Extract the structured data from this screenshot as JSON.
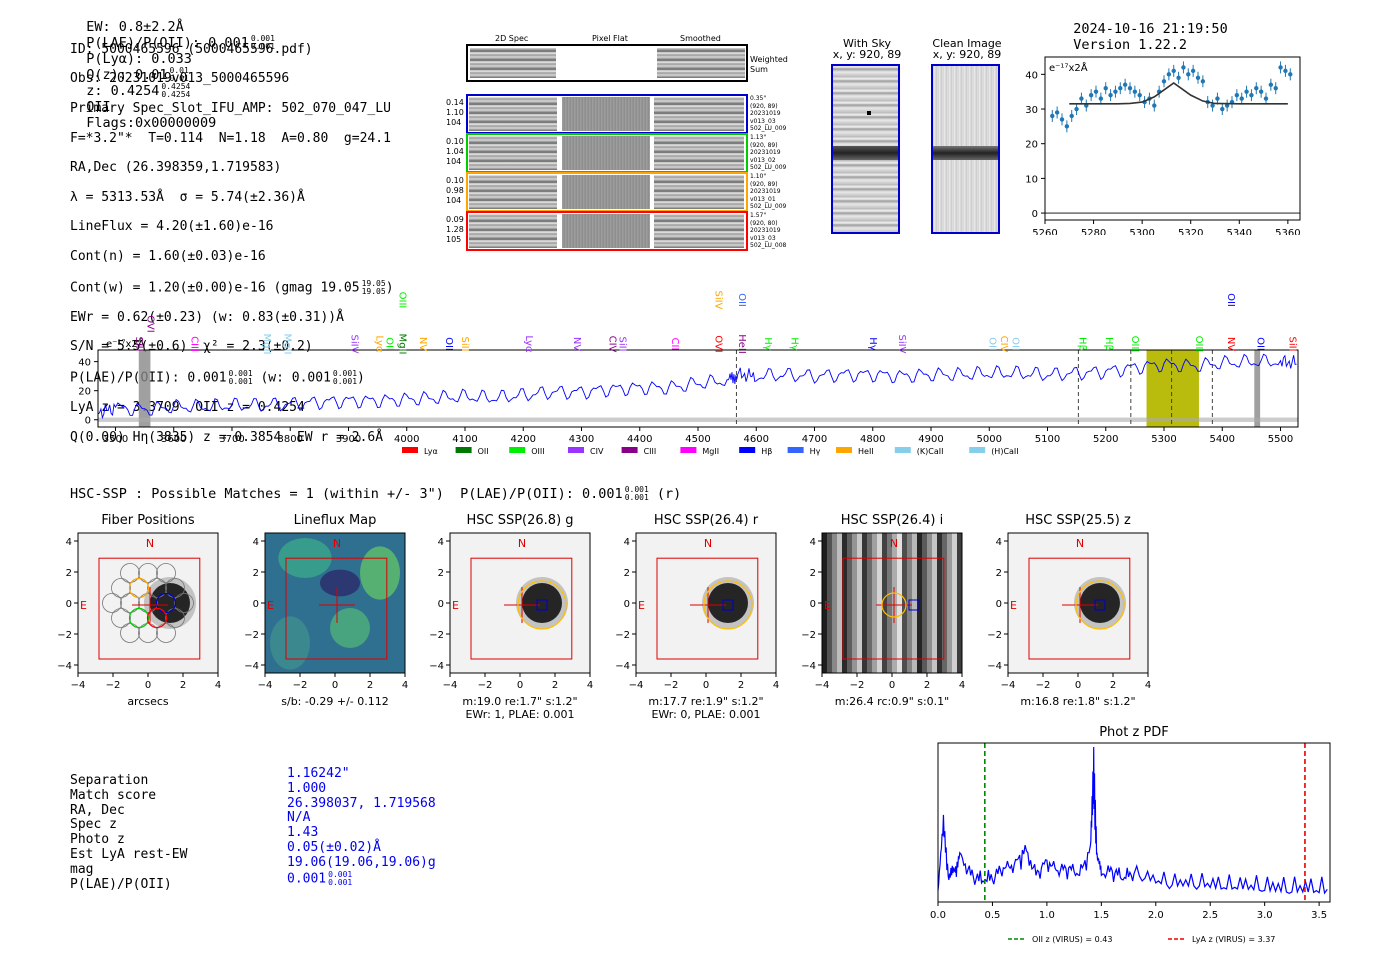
{
  "header": {
    "ew": "EW: 0.8±2.2Å",
    "plae_label": "P(LAE)/P(OII): 0.001",
    "plae_up": "0.001",
    "plae_dn": "0.001",
    "plya": "P(Lyα): 0.033",
    "qz_label": "Q(z): 0.01",
    "qz_up": "0.01",
    "qz_dn": "0.01",
    "z_label": "z: 0.4254",
    "z_up": "0.4254",
    "z_dn": "0.4254",
    "z_line": "OII",
    "flags": "Flags:0x00000009",
    "datetime": "2024-10-16 21:19:50",
    "version": "Version 1.22.2"
  },
  "info": {
    "id": "ID: 5000465596 (5000465596.pdf)",
    "obs": "Obs: 20231019v013_5000465596",
    "slot": "Primary Spec_Slot_IFU_AMP: 502_070_047_LU",
    "fwhm": "F=*3.2\"*  T=0.114  N=1.18  A=0.80  g=24.1",
    "radec": "RA,Dec (26.398359,1.719583)",
    "lambda": "λ = 5313.53Å  σ = 5.74(±2.36)Å",
    "lineflux": "LineFlux = 4.20(±1.60)e-16",
    "contn": "Cont(n) = 1.60(±0.03)e-16",
    "contw": "Cont(w) = 1.20(±0.00)e-16 (gmag 19.05",
    "contw_up": "19.05",
    "contw_dn": "19.05",
    "contw_end": ")",
    "ewr": "EWr = 0.62(±0.23) (w: 0.83(±0.31))Å",
    "sn": "S/N = 5.5(±0.6)  χ² = 2.3(±0.2)",
    "plae": "P(LAE)/P(OII): 0.001",
    "plae_up": "0.001",
    "plae_dn": "0.001",
    "plae_w": "(w: 0.001",
    "plae_w_up": "0.001",
    "plae_w_dn": "0.001",
    "plae_w_end": ")",
    "lya": "LyA z = 3.3709  OII z = 0.4254",
    "q": "Q(0.00) Hη(3835) z = 0.3854  EW r = 2.6Å"
  },
  "spec2d": {
    "col_titles": [
      "2D Spec",
      "Pixel Flat",
      "Smoothed"
    ],
    "weighted_label": [
      "Weighted",
      "Sum"
    ],
    "rows": [
      {
        "left": [
          "0.14",
          "1.10",
          "104"
        ],
        "right": [
          "0.35\"",
          "(920, 89)",
          "20231019",
          "v013_03",
          "502_LU_009"
        ],
        "color": "#0000cc"
      },
      {
        "left": [
          "0.10",
          "1.04",
          "104"
        ],
        "right": [
          "1.13\"",
          "(920, 89)",
          "20231019",
          "v013_02",
          "502_LU_009"
        ],
        "color": "#00cc00"
      },
      {
        "left": [
          "0.10",
          "0.98",
          "104"
        ],
        "right": [
          "1.10\"",
          "(920, 89)",
          "20231019",
          "v013_01",
          "502_LU_009"
        ],
        "color": "#ffa500"
      },
      {
        "left": [
          "0.09",
          "1.28",
          "105"
        ],
        "right": [
          "1.57\"",
          "(920, 80)",
          "20231019",
          "v013_03",
          "502_LU_008"
        ],
        "color": "#ff0000"
      }
    ]
  },
  "sky": {
    "with_sky": "With Sky",
    "with_sky_xy": "x, y: 920, 89",
    "clean": "Clean Image",
    "clean_xy": "x, y: 920, 89"
  },
  "fit_plot": {
    "ylabel": "e⁻¹⁷x2Å",
    "xticks": [
      "5260",
      "5280",
      "5300",
      "5320",
      "5340",
      "5360"
    ],
    "yticks": [
      "0",
      "10",
      "20",
      "30",
      "40"
    ]
  },
  "full_spec": {
    "ylabel": "e⁻¹⁷x2Å",
    "xticks": [
      "3500",
      "3600",
      "3700",
      "3800",
      "3900",
      "4000",
      "4100",
      "4200",
      "4300",
      "4400",
      "4500",
      "4600",
      "4700",
      "4800",
      "4900",
      "5000",
      "5100",
      "5200",
      "5300",
      "5400",
      "5500"
    ],
    "yticks": [
      "0",
      "20",
      "40"
    ],
    "legend": [
      {
        "name": "Lyα",
        "color": "#ff0000"
      },
      {
        "name": "OII",
        "color": "#007700"
      },
      {
        "name": "OIII",
        "color": "#00ee00"
      },
      {
        "name": "CIV",
        "color": "#9933ff"
      },
      {
        "name": "CIII",
        "color": "#880088"
      },
      {
        "name": "MgII",
        "color": "#ff00ff"
      },
      {
        "name": "Hβ",
        "color": "#0000ff"
      },
      {
        "name": "Hγ",
        "color": "#3366ff"
      },
      {
        "name": "HeII",
        "color": "#ffa500"
      },
      {
        "name": "(K)CaII",
        "color": "#87ceeb"
      },
      {
        "name": "(H)CaII",
        "color": "#87ceeb"
      }
    ],
    "lines": [
      {
        "name": "SiII",
        "x": 3530,
        "color": "#880088",
        "row": 2
      },
      {
        "name": "OVI",
        "x": 3550,
        "color": "#880088",
        "row": 1
      },
      {
        "name": "CIII",
        "x": 3625,
        "color": "#ff00ff",
        "row": 2
      },
      {
        "name": "MgII",
        "x": 3750,
        "color": "#87ceeb",
        "row": 2
      },
      {
        "name": "MgII",
        "x": 3785,
        "color": "#87ceeb",
        "row": 2
      },
      {
        "name": "SiIV",
        "x": 3900,
        "color": "#9933ff",
        "row": 2
      },
      {
        "name": "Lyα",
        "x": 3943,
        "color": "#ffa500",
        "row": 2
      },
      {
        "name": "OII",
        "x": 3960,
        "color": "#00ee00",
        "row": 2
      },
      {
        "name": "MgII",
        "x": 3982,
        "color": "#007700",
        "row": 2
      },
      {
        "name": "OIII",
        "x": 3982,
        "color": "#00ee00",
        "row": 0
      },
      {
        "name": "NV",
        "x": 4018,
        "color": "#ffa500",
        "row": 2
      },
      {
        "name": "OII",
        "x": 4062,
        "color": "#0000ff",
        "row": 2
      },
      {
        "name": "SiII",
        "x": 4090,
        "color": "#ffa500",
        "row": 2
      },
      {
        "name": "Lyα",
        "x": 4200,
        "color": "#9933ff",
        "row": 2
      },
      {
        "name": "NV",
        "x": 4282,
        "color": "#9933ff",
        "row": 2
      },
      {
        "name": "CIV",
        "x": 4343,
        "color": "#880088",
        "row": 2
      },
      {
        "name": "SiII",
        "x": 4360,
        "color": "#9933ff",
        "row": 2
      },
      {
        "name": "CII",
        "x": 4450,
        "color": "#ff00ff",
        "row": 2
      },
      {
        "name": "SiIV",
        "x": 4525,
        "color": "#ffa500",
        "row": 0
      },
      {
        "name": "OVI",
        "x": 4525,
        "color": "#ff0000",
        "row": 2
      },
      {
        "name": "OII",
        "x": 4565,
        "color": "#3366ff",
        "row": 0
      },
      {
        "name": "HeII",
        "x": 4565,
        "color": "#880088",
        "row": 2
      },
      {
        "name": "Hγ",
        "x": 4610,
        "color": "#00ee00",
        "row": 2
      },
      {
        "name": "Hγ",
        "x": 4655,
        "color": "#00ee00",
        "row": 2
      },
      {
        "name": "Hγ",
        "x": 4790,
        "color": "#0000ff",
        "row": 2
      },
      {
        "name": "SiIV",
        "x": 4840,
        "color": "#9933ff",
        "row": 2
      },
      {
        "name": "OII",
        "x": 4995,
        "color": "#87ceeb",
        "row": 2
      },
      {
        "name": "CIV",
        "x": 5015,
        "color": "#ffa500",
        "row": 2
      },
      {
        "name": "OII",
        "x": 5035,
        "color": "#87ceeb",
        "row": 2
      },
      {
        "name": "Hβ",
        "x": 5150,
        "color": "#00ee00",
        "row": 2
      },
      {
        "name": "Hβ",
        "x": 5195,
        "color": "#00ee00",
        "row": 2
      },
      {
        "name": "OIII",
        "x": 5240,
        "color": "#00ee00",
        "row": 2
      },
      {
        "name": "OIII",
        "x": 5350,
        "color": "#00ee00",
        "row": 2
      },
      {
        "name": "NV",
        "x": 5405,
        "color": "#ff0000",
        "row": 2
      },
      {
        "name": "OII",
        "x": 5405,
        "color": "#0000ff",
        "row": 0
      },
      {
        "name": "OII",
        "x": 5455,
        "color": "#0000ff",
        "row": 2
      },
      {
        "name": "SiII",
        "x": 5510,
        "color": "#ff0000",
        "row": 2
      }
    ]
  },
  "match_line": {
    "text": "HSC-SSP : Possible Matches = 1 (within +/- 3\")  P(LAE)/P(OII): 0.001",
    "up": "0.001",
    "dn": "0.001",
    "end": "(r)"
  },
  "cutouts": [
    {
      "title": "Fiber Positions",
      "caption": "arcsecs",
      "caption2": ""
    },
    {
      "title": "Lineflux Map",
      "caption": "s/b: -0.29 +/- 0.112",
      "caption2": ""
    },
    {
      "title": "HSC SSP(26.8) g",
      "caption": "m:19.0  re:1.7\"  s:1.2\"",
      "caption2": "EWr: 1, PLAE: 0.001"
    },
    {
      "title": "HSC SSP(26.4) r",
      "caption": "m:17.7  re:1.9\"  s:1.2\"",
      "caption2": "EWr: 0, PLAE: 0.001"
    },
    {
      "title": "HSC SSP(26.4) i",
      "caption": "m:26.4 rc:0.9\"  s:0.1\"",
      "caption2": ""
    },
    {
      "title": "HSC SSP(25.5) z",
      "caption": "m:16.8  re:1.8\"  s:1.2\"",
      "caption2": ""
    }
  ],
  "cutout_ticks": {
    "x": [
      "−4",
      "−2",
      "0",
      "2",
      "4"
    ],
    "y": [
      "4",
      "2",
      "0",
      "−2",
      "−4"
    ],
    "north": "N",
    "east": "E"
  },
  "match_table": {
    "labels": [
      "Separation",
      "Match score",
      "RA, Dec",
      "Spec z",
      "Photo z",
      "Est LyA rest-EW",
      "mag",
      "P(LAE)/P(OII)"
    ],
    "values": [
      "1.16242\"",
      "1.000",
      "26.398037, 1.719568",
      "N/A",
      "1.43",
      "0.05(±0.02)Å",
      "19.06(19.06,19.06)g",
      "0.001"
    ],
    "plae_up": "0.001",
    "plae_dn": "0.001"
  },
  "chart_data": [
    {
      "type": "line",
      "title": "",
      "xlabel": "",
      "ylabel": "e-17x2Å",
      "xlim": [
        5260,
        5365
      ],
      "ylim": [
        -2,
        45
      ],
      "series": [
        {
          "name": "data",
          "x": [
            5263,
            5265,
            5267,
            5269,
            5271,
            5273,
            5275,
            5277,
            5279,
            5281,
            5283,
            5285,
            5287,
            5289,
            5291,
            5293,
            5295,
            5297,
            5299,
            5301,
            5303,
            5305,
            5307,
            5309,
            5311,
            5313,
            5315,
            5317,
            5319,
            5321,
            5323,
            5325,
            5327,
            5329,
            5331,
            5333,
            5335,
            5337,
            5339,
            5341,
            5343,
            5345,
            5347,
            5349,
            5351,
            5353,
            5355,
            5357,
            5359,
            5361
          ],
          "y": [
            28,
            29,
            27,
            25,
            28,
            30,
            33,
            31,
            34,
            35,
            33,
            36,
            34,
            35,
            36,
            37,
            36,
            35,
            34,
            32,
            33,
            31,
            35,
            38,
            40,
            41,
            39,
            42,
            40,
            41,
            39,
            38,
            32,
            31,
            33,
            30,
            31,
            32,
            34,
            33,
            35,
            34,
            36,
            35,
            33,
            37,
            36,
            42,
            41,
            40
          ]
        },
        {
          "name": "fit",
          "x": [
            5270,
            5280,
            5290,
            5295,
            5300,
            5305,
            5310,
            5313,
            5316,
            5320,
            5325,
            5330,
            5340,
            5350,
            5360
          ],
          "y": [
            31.5,
            31.5,
            31.5,
            31.6,
            32.0,
            33.5,
            36.0,
            37.5,
            36.0,
            34.0,
            32.3,
            31.6,
            31.5,
            31.5,
            31.5
          ]
        }
      ]
    },
    {
      "type": "line",
      "title": "",
      "ylabel": "e-17x2Å",
      "xlim": [
        3470,
        5530
      ],
      "ylim": [
        -5,
        48
      ],
      "series": [
        {
          "name": "spectrum",
          "x": [
            3470,
            3500,
            3550,
            3600,
            3650,
            3700,
            3750,
            3800,
            3850,
            3900,
            3950,
            4000,
            4050,
            4100,
            4150,
            4200,
            4250,
            4300,
            4350,
            4400,
            4450,
            4500,
            4550,
            4570,
            4600,
            4650,
            4700,
            4750,
            4800,
            4850,
            4900,
            4950,
            5000,
            5050,
            5100,
            5150,
            5200,
            5250,
            5300,
            5350,
            5400,
            5450,
            5500,
            5530
          ],
          "y": [
            5,
            8,
            7,
            9,
            9,
            10,
            10,
            11,
            12,
            13,
            13,
            14,
            15,
            16,
            15,
            17,
            19,
            19,
            21,
            22,
            22,
            25,
            27,
            31,
            30,
            31,
            30,
            31,
            31,
            30,
            31,
            31,
            32,
            32,
            31,
            32,
            33,
            36,
            38,
            37,
            39,
            40,
            40,
            39
          ]
        }
      ],
      "shaded_regions": [
        [
          3540,
          3560
        ],
        [
          5270,
          5360
        ],
        [
          5455,
          5465
        ]
      ],
      "dashed_lines": [
        4566,
        5153,
        5243,
        5313,
        5383
      ]
    },
    {
      "type": "line",
      "title": "Phot z PDF",
      "xlim": [
        0.0,
        3.6
      ],
      "xticks": [
        "0.0",
        "0.5",
        "1.0",
        "1.5",
        "2.0",
        "2.5",
        "3.0",
        "3.5"
      ],
      "series": [
        {
          "name": "pdf",
          "x": [
            0.0,
            0.05,
            0.1,
            0.15,
            0.2,
            0.3,
            0.4,
            0.5,
            0.6,
            0.7,
            0.8,
            0.9,
            1.0,
            1.1,
            1.2,
            1.3,
            1.4,
            1.43,
            1.46,
            1.5,
            1.6,
            1.7,
            1.8,
            2.0,
            2.2,
            2.4,
            2.6,
            2.8,
            3.0,
            3.2,
            3.4,
            3.6
          ],
          "y": [
            0.05,
            0.55,
            0.12,
            0.18,
            0.3,
            0.15,
            0.1,
            0.12,
            0.2,
            0.22,
            0.35,
            0.15,
            0.25,
            0.18,
            0.2,
            0.15,
            0.35,
            1.0,
            0.3,
            0.15,
            0.18,
            0.12,
            0.16,
            0.1,
            0.08,
            0.08,
            0.06,
            0.06,
            0.05,
            0.04,
            0.04,
            0.03
          ]
        }
      ],
      "vlines": [
        {
          "name": "OII z (VIRUS) = 0.43",
          "x": 0.43,
          "color": "#008800"
        },
        {
          "name": "LyA z (VIRUS) = 3.37",
          "x": 3.37,
          "color": "#ee0000"
        }
      ]
    }
  ]
}
